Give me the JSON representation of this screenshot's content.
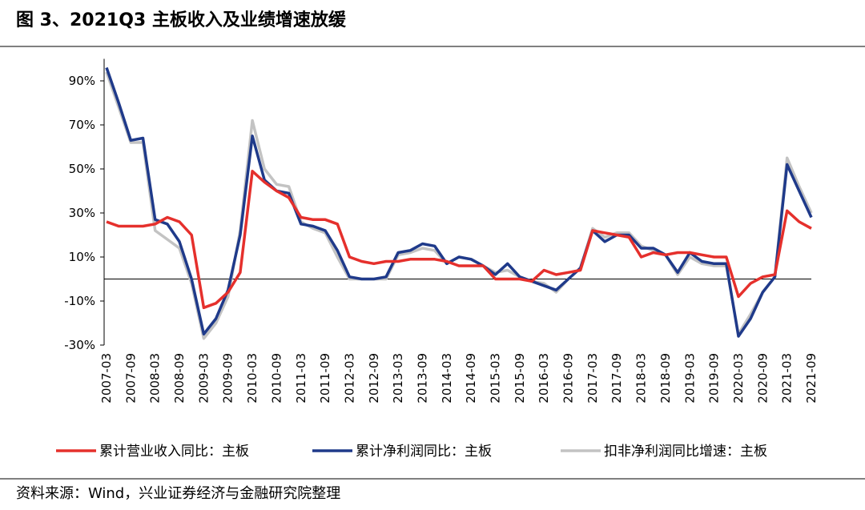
{
  "chart_data": {
    "type": "line",
    "title": "图 3、2021Q3 主板收入及业绩增速放缓",
    "source": "资料来源：Wind，兴业证券经济与金融研究院整理",
    "categories": [
      "2007-03",
      null,
      "2007-09",
      null,
      "2008-03",
      null,
      "2008-09",
      null,
      "2009-03",
      null,
      "2009-09",
      null,
      "2010-03",
      null,
      "2010-09",
      null,
      "2011-03",
      null,
      "2011-09",
      null,
      "2012-03",
      null,
      "2012-09",
      null,
      "2013-03",
      null,
      "2013-09",
      null,
      "2014-03",
      null,
      "2014-09",
      null,
      "2015-03",
      null,
      "2015-09",
      null,
      "2016-03",
      null,
      "2016-09",
      null,
      "2017-03",
      null,
      "2017-09",
      null,
      "2018-03",
      null,
      "2018-09",
      null,
      "2019-03",
      null,
      "2019-09",
      null,
      "2020-03",
      null,
      "2020-09",
      null,
      "2021-03",
      null,
      "2021-09"
    ],
    "series": [
      {
        "name": "累计营业收入同比：主板",
        "color": "#e5302c",
        "values": [
          26,
          24,
          24,
          24,
          25,
          28,
          26,
          20,
          -13,
          -11,
          -6,
          3,
          49,
          44,
          40,
          37,
          28,
          27,
          27,
          25,
          10,
          8,
          7,
          8,
          8,
          9,
          9,
          9,
          8,
          6,
          6,
          6,
          0,
          0,
          0,
          -1,
          4,
          2,
          3,
          4,
          22,
          21,
          20,
          19,
          10,
          12,
          11,
          12,
          12,
          11,
          10,
          10,
          -8,
          -2,
          1,
          2,
          31,
          26,
          23
        ]
      },
      {
        "name": "累计净利润同比：主板",
        "color": "#1f3a8a",
        "values": [
          96,
          80,
          63,
          64,
          27,
          25,
          17,
          0,
          -25,
          -18,
          -5,
          20,
          65,
          45,
          40,
          39,
          25,
          24,
          22,
          13,
          1,
          0,
          0,
          1,
          12,
          13,
          16,
          15,
          7,
          10,
          9,
          6,
          2,
          7,
          1,
          -1,
          -3,
          -5,
          0,
          5,
          22,
          17,
          20,
          20,
          14,
          14,
          11,
          3,
          12,
          8,
          7,
          7,
          -26,
          -18,
          -6,
          1,
          52,
          40,
          28
        ]
      },
      {
        "name": "扣非净利润同比增速：主板",
        "color": "#c3c3c3",
        "values": [
          94,
          78,
          62,
          62,
          22,
          18,
          14,
          -2,
          -27,
          -20,
          -8,
          22,
          72,
          50,
          43,
          42,
          26,
          23,
          21,
          10,
          0,
          0,
          0,
          0,
          11,
          12,
          14,
          13,
          7,
          10,
          9,
          6,
          3,
          4,
          1,
          -1,
          -2,
          -6,
          0,
          5,
          23,
          19,
          21,
          21,
          15,
          13,
          11,
          2,
          10,
          7,
          6,
          6,
          -25,
          -16,
          -6,
          1,
          55,
          42,
          30
        ]
      }
    ],
    "ylim": [
      -30,
      100
    ],
    "yticks": [
      {
        "value": -30,
        "label": "-30%"
      },
      {
        "value": -10,
        "label": "-10%"
      },
      {
        "value": 10,
        "label": "10%"
      },
      {
        "value": 30,
        "label": "30%"
      },
      {
        "value": 50,
        "label": "50%"
      },
      {
        "value": 70,
        "label": "70%"
      },
      {
        "value": 90,
        "label": "90%"
      }
    ]
  }
}
